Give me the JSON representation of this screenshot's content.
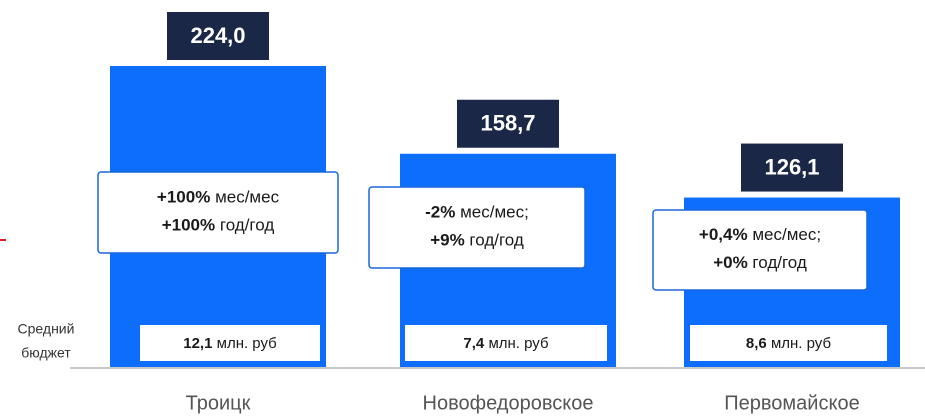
{
  "chart_data": {
    "type": "bar",
    "categories": [
      "Троицк",
      "Новофедоровское",
      "Первомайское"
    ],
    "values": [
      224.0,
      158.7,
      126.1
    ],
    "value_labels": [
      "224,0",
      "158,7",
      "126,1"
    ],
    "color": "#0d6efd",
    "mom_changes": [
      100,
      -2,
      0.4
    ],
    "mom_labels": [
      "+100%",
      "-2%",
      "+0,4%"
    ],
    "mom_units": [
      "мес/мес",
      "мес/мес;",
      "мес/мес;"
    ],
    "yoy_changes": [
      100,
      9,
      0
    ],
    "yoy_labels": [
      "+100%",
      "+9%",
      "+0%"
    ],
    "yoy_unit": "год/год",
    "budget_title": [
      "Средний",
      "бюджет"
    ],
    "budgets": [
      12.1,
      7.4,
      8.6
    ],
    "budget_labels": [
      "12,1",
      "7,4",
      "8,6"
    ],
    "budget_unit": "млн. руб"
  }
}
